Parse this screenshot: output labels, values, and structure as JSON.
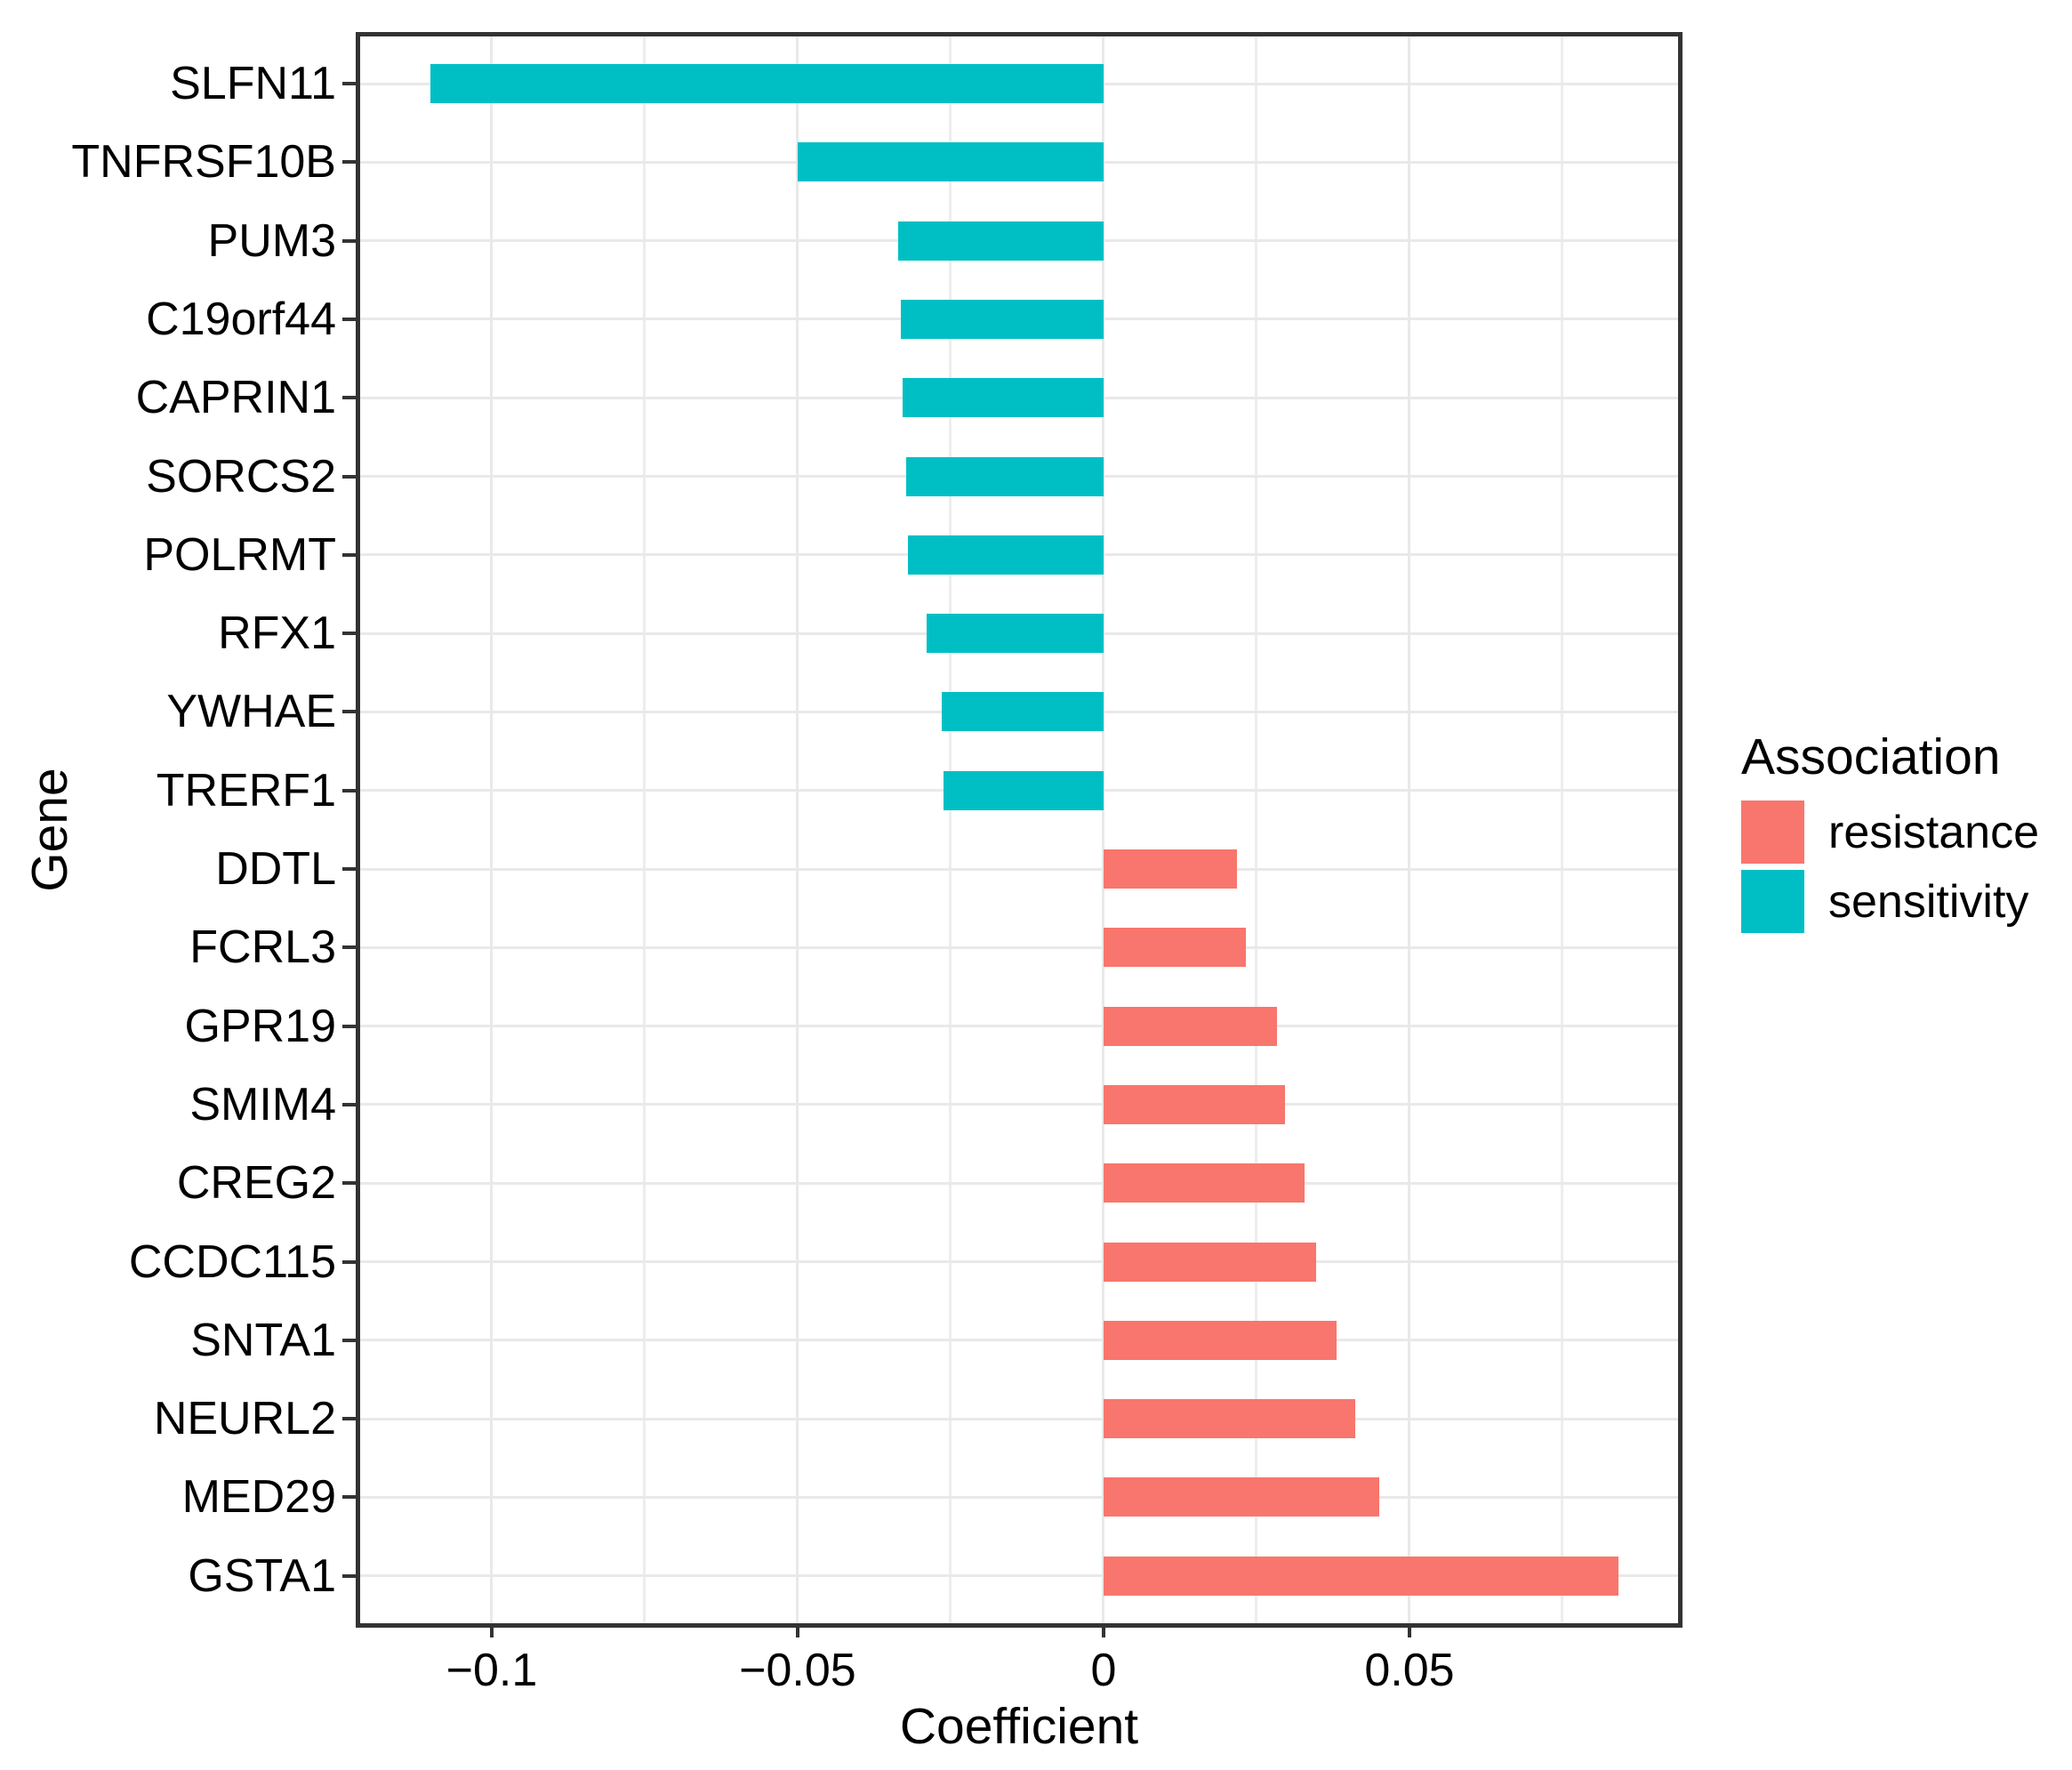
{
  "chart_data": {
    "type": "bar",
    "orientation": "horizontal",
    "title": "",
    "xlabel": "Coefficient",
    "ylabel": "Gene",
    "xlim": [
      -0.1215,
      0.0939
    ],
    "grid": true,
    "x_ticks": [
      {
        "value": -0.1,
        "label": "−0.1"
      },
      {
        "value": -0.05,
        "label": "−0.05"
      },
      {
        "value": 0,
        "label": "0"
      },
      {
        "value": 0.05,
        "label": "0.05"
      }
    ],
    "x_minor_ticks": [
      -0.075,
      -0.025,
      0.025,
      0.075
    ],
    "categories": [
      "SLFN11",
      "TNFRSF10B",
      "PUM3",
      "C19orf44",
      "CAPRIN1",
      "SORCS2",
      "POLRMT",
      "RFX1",
      "YWHAE",
      "TRERF1",
      "DDTL",
      "FCRL3",
      "GPR19",
      "SMIM4",
      "CREG2",
      "CCDC115",
      "SNTA1",
      "NEURL2",
      "MED29",
      "GSTA1"
    ],
    "values": [
      -0.11,
      -0.05,
      -0.0335,
      -0.0332,
      -0.0328,
      -0.0322,
      -0.032,
      -0.0289,
      -0.0264,
      -0.0262,
      0.0218,
      0.0233,
      0.0283,
      0.0296,
      0.0328,
      0.0348,
      0.0381,
      0.0411,
      0.045,
      0.0842
    ],
    "associations": [
      "sensitivity",
      "sensitivity",
      "sensitivity",
      "sensitivity",
      "sensitivity",
      "sensitivity",
      "sensitivity",
      "sensitivity",
      "sensitivity",
      "sensitivity",
      "resistance",
      "resistance",
      "resistance",
      "resistance",
      "resistance",
      "resistance",
      "resistance",
      "resistance",
      "resistance",
      "resistance"
    ],
    "colors": {
      "resistance": "#F8766D",
      "sensitivity": "#00BFC4"
    },
    "legend": {
      "title": "Association",
      "position": "right",
      "entries": [
        {
          "label": "resistance",
          "color": "#F8766D"
        },
        {
          "label": "sensitivity",
          "color": "#00BFC4"
        }
      ]
    }
  }
}
